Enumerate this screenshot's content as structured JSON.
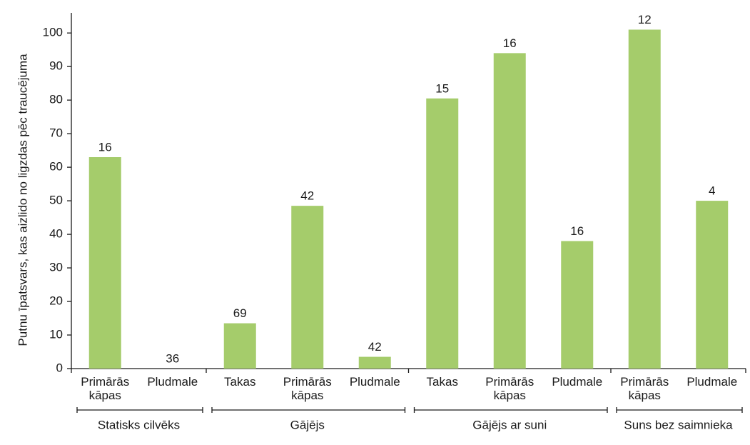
{
  "chart_data": {
    "type": "bar",
    "y_label": "Putnu īpatsvars, kas aizlido no ligzdas pēc traucējuma",
    "color": "#a5cc6b",
    "ylim": [
      0,
      106
    ],
    "yticks": [
      0,
      10,
      20,
      30,
      40,
      50,
      60,
      70,
      80,
      90,
      100
    ],
    "groups": [
      {
        "name": "Statisks cilvēks",
        "categories": [
          "Primārās kāpas",
          "Pludmale"
        ],
        "values": [
          63,
          0
        ],
        "sample_sizes": [
          16,
          36
        ]
      },
      {
        "name": "Gājējs",
        "categories": [
          "Takas",
          "Primārās kāpas",
          "Pludmale"
        ],
        "values": [
          13.5,
          48.5,
          3.5
        ],
        "sample_sizes": [
          69,
          42,
          42
        ]
      },
      {
        "name": "Gājējs ar suni",
        "categories": [
          "Takas",
          "Primārās kāpas",
          "Pludmale"
        ],
        "values": [
          80.5,
          94,
          38
        ],
        "sample_sizes": [
          15,
          16,
          16
        ]
      },
      {
        "name": "Suns bez saimnieka",
        "categories": [
          "Primārās kāpas",
          "Pludmale"
        ],
        "values": [
          101,
          50
        ],
        "sample_sizes": [
          12,
          4
        ]
      }
    ]
  }
}
